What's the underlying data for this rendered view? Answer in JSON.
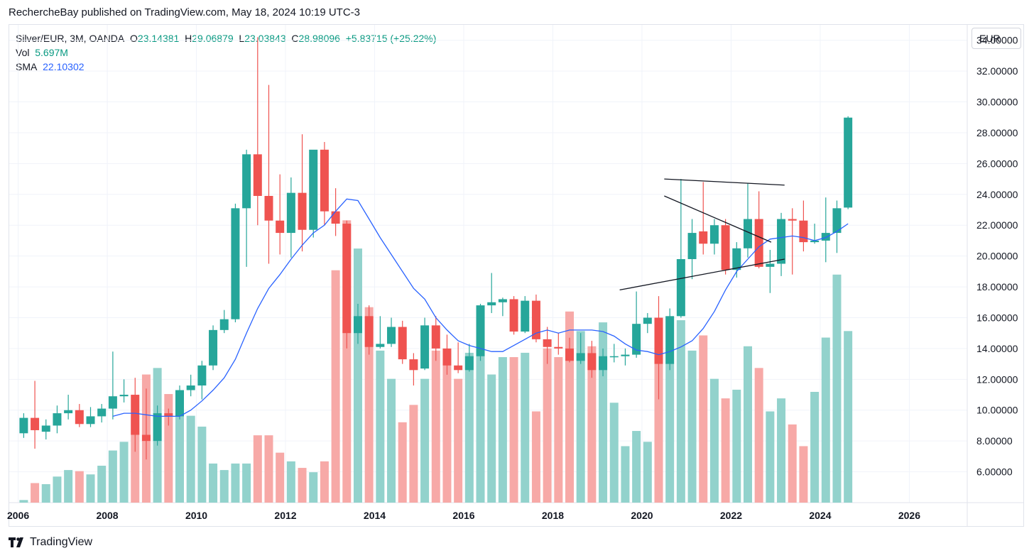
{
  "header": {
    "published": "RechercheBay published on TradingView.com, May 18, 2024 10:19 UTC-3"
  },
  "legend": {
    "symbol": "Silver/EUR, 3M, OANDA",
    "o_label": "O",
    "o_value": "23.14381",
    "h_label": "H",
    "h_value": "29.06879",
    "l_label": "L",
    "l_value": "23.03843",
    "c_label": "C",
    "c_value": "28.98096",
    "change": "+5.83715 (+25.22%)",
    "vol_label": "Vol",
    "vol_value": "5.697M",
    "sma_label": "SMA",
    "sma_value": "22.10302"
  },
  "currency_button": "EUR",
  "footer": {
    "brand": "TradingView",
    "logo_icon": "tradingview-logo-icon"
  },
  "colors": {
    "up": "#26a69a",
    "down": "#ef5350",
    "up_vol": "#92d2cc",
    "down_vol": "#f7a9a7",
    "sma": "#2962ff",
    "grid": "#f0f3fa",
    "trendline": "#131722"
  },
  "chart_data": {
    "type": "candlestick",
    "interval": "3M",
    "y_axis": {
      "side": "right",
      "range": [
        4.0,
        35.0
      ],
      "ticks": [
        6,
        8,
        10,
        12,
        14,
        16,
        18,
        20,
        22,
        24,
        26,
        28,
        30,
        32,
        34
      ],
      "tick_labels": [
        "6.00000",
        "8.00000",
        "10.00000",
        "12.00000",
        "14.00000",
        "16.00000",
        "18.00000",
        "20.00000",
        "22.00000",
        "24.00000",
        "26.00000",
        "28.00000",
        "30.00000",
        "32.00000",
        "34.00000"
      ]
    },
    "x_axis": {
      "range": [
        2005.8,
        2027.3
      ],
      "ticks": [
        2006,
        2008,
        2010,
        2012,
        2014,
        2016,
        2018,
        2020,
        2022,
        2024,
        2026
      ],
      "tick_labels": [
        "2006",
        "2008",
        "2010",
        "2012",
        "2014",
        "2016",
        "2018",
        "2020",
        "2022",
        "2024",
        "2026"
      ]
    },
    "grid": true,
    "start_date": "2006-Q1",
    "candles": [
      {
        "o": 8.5,
        "h": 9.8,
        "l": 8.2,
        "c": 9.5,
        "v": 0.12
      },
      {
        "o": 9.5,
        "h": 11.9,
        "l": 7.5,
        "c": 8.7,
        "v": 0.9
      },
      {
        "o": 8.6,
        "h": 9.4,
        "l": 8.1,
        "c": 9.0,
        "v": 0.85
      },
      {
        "o": 9.0,
        "h": 10.3,
        "l": 8.5,
        "c": 9.8,
        "v": 1.2
      },
      {
        "o": 9.8,
        "h": 11.0,
        "l": 9.4,
        "c": 10.0,
        "v": 1.5
      },
      {
        "o": 10.0,
        "h": 10.4,
        "l": 8.9,
        "c": 9.1,
        "v": 1.45
      },
      {
        "o": 9.1,
        "h": 10.2,
        "l": 8.9,
        "c": 9.6,
        "v": 1.3
      },
      {
        "o": 9.6,
        "h": 10.4,
        "l": 9.2,
        "c": 10.1,
        "v": 1.7
      },
      {
        "o": 10.1,
        "h": 13.8,
        "l": 9.4,
        "c": 10.9,
        "v": 2.4
      },
      {
        "o": 10.9,
        "h": 12.0,
        "l": 10.5,
        "c": 11.0,
        "v": 2.8
      },
      {
        "o": 11.0,
        "h": 12.1,
        "l": 7.3,
        "c": 8.4,
        "v": 4.0
      },
      {
        "o": 8.4,
        "h": 11.4,
        "l": 6.8,
        "c": 8.0,
        "v": 5.9
      },
      {
        "o": 8.0,
        "h": 10.3,
        "l": 7.7,
        "c": 9.8,
        "v": 6.2
      },
      {
        "o": 9.8,
        "h": 10.1,
        "l": 9.0,
        "c": 9.6,
        "v": 5.0
      },
      {
        "o": 9.6,
        "h": 11.6,
        "l": 9.4,
        "c": 11.3,
        "v": 4.2
      },
      {
        "o": 11.3,
        "h": 12.3,
        "l": 10.9,
        "c": 11.6,
        "v": 4.0
      },
      {
        "o": 11.6,
        "h": 13.2,
        "l": 10.7,
        "c": 12.9,
        "v": 3.5
      },
      {
        "o": 12.9,
        "h": 15.5,
        "l": 12.6,
        "c": 15.2,
        "v": 1.8
      },
      {
        "o": 15.2,
        "h": 16.5,
        "l": 15.0,
        "c": 15.9,
        "v": 1.5
      },
      {
        "o": 15.9,
        "h": 23.4,
        "l": 15.7,
        "c": 23.1,
        "v": 1.8
      },
      {
        "o": 23.1,
        "h": 26.9,
        "l": 19.3,
        "c": 26.6,
        "v": 1.8
      },
      {
        "o": 26.6,
        "h": 34.2,
        "l": 22.0,
        "c": 23.9,
        "v": 3.1
      },
      {
        "o": 23.9,
        "h": 31.1,
        "l": 19.5,
        "c": 22.3,
        "v": 3.1
      },
      {
        "o": 22.3,
        "h": 25.3,
        "l": 20.1,
        "c": 21.5,
        "v": 2.3
      },
      {
        "o": 21.5,
        "h": 25.1,
        "l": 19.9,
        "c": 24.1,
        "v": 1.9
      },
      {
        "o": 24.1,
        "h": 27.9,
        "l": 20.3,
        "c": 21.7,
        "v": 1.6
      },
      {
        "o": 21.7,
        "h": 26.6,
        "l": 21.2,
        "c": 26.9,
        "v": 1.4
      },
      {
        "o": 26.9,
        "h": 27.4,
        "l": 22.0,
        "c": 22.9,
        "v": 1.9
      },
      {
        "o": 22.9,
        "h": 24.4,
        "l": 21.3,
        "c": 22.1,
        "v": 10.7
      },
      {
        "o": 22.1,
        "h": 22.3,
        "l": 14.0,
        "c": 15.0,
        "v": 13.0
      },
      {
        "o": 15.0,
        "h": 16.9,
        "l": 14.3,
        "c": 16.1,
        "v": 11.7
      },
      {
        "o": 16.1,
        "h": 16.8,
        "l": 13.6,
        "c": 14.1,
        "v": 9.0
      },
      {
        "o": 14.1,
        "h": 16.1,
        "l": 14.0,
        "c": 14.3,
        "v": 7.0
      },
      {
        "o": 14.3,
        "h": 16.0,
        "l": 14.1,
        "c": 15.4,
        "v": 5.7
      },
      {
        "o": 15.4,
        "h": 15.8,
        "l": 13.0,
        "c": 13.3,
        "v": 3.7
      },
      {
        "o": 13.3,
        "h": 13.7,
        "l": 11.6,
        "c": 12.6,
        "v": 4.5
      },
      {
        "o": 12.7,
        "h": 16.0,
        "l": 12.6,
        "c": 15.5,
        "v": 5.7
      },
      {
        "o": 15.5,
        "h": 16.1,
        "l": 13.2,
        "c": 14.0,
        "v": 7.0
      },
      {
        "o": 14.0,
        "h": 14.9,
        "l": 12.3,
        "c": 12.9,
        "v": 6.4
      },
      {
        "o": 12.9,
        "h": 14.4,
        "l": 12.4,
        "c": 12.6,
        "v": 5.7
      },
      {
        "o": 12.6,
        "h": 14.3,
        "l": 12.5,
        "c": 13.5,
        "v": 6.9
      },
      {
        "o": 13.5,
        "h": 16.9,
        "l": 13.2,
        "c": 16.8,
        "v": 6.8
      },
      {
        "o": 16.8,
        "h": 18.9,
        "l": 16.3,
        "c": 17.0,
        "v": 5.9
      },
      {
        "o": 17.0,
        "h": 17.3,
        "l": 16.1,
        "c": 17.2,
        "v": 6.7
      },
      {
        "o": 17.2,
        "h": 17.4,
        "l": 14.9,
        "c": 15.1,
        "v": 6.7
      },
      {
        "o": 15.1,
        "h": 17.4,
        "l": 15.0,
        "c": 17.1,
        "v": 6.9
      },
      {
        "o": 17.1,
        "h": 17.5,
        "l": 14.4,
        "c": 14.6,
        "v": 4.2
      },
      {
        "o": 14.6,
        "h": 15.4,
        "l": 13.0,
        "c": 14.1,
        "v": 7.1
      },
      {
        "o": 14.1,
        "h": 15.0,
        "l": 13.6,
        "c": 14.0,
        "v": 6.7
      },
      {
        "o": 14.0,
        "h": 14.7,
        "l": 13.1,
        "c": 13.2,
        "v": 8.8
      },
      {
        "o": 13.2,
        "h": 15.0,
        "l": 13.0,
        "c": 13.7,
        "v": 7.9
      },
      {
        "o": 13.7,
        "h": 14.5,
        "l": 12.1,
        "c": 12.6,
        "v": 7.2
      },
      {
        "o": 12.6,
        "h": 14.0,
        "l": 12.2,
        "c": 13.5,
        "v": 8.3
      },
      {
        "o": 13.5,
        "h": 14.3,
        "l": 13.1,
        "c": 13.5,
        "v": 4.6
      },
      {
        "o": 13.5,
        "h": 14.0,
        "l": 12.9,
        "c": 13.6,
        "v": 2.6
      },
      {
        "o": 13.6,
        "h": 17.7,
        "l": 13.4,
        "c": 15.6,
        "v": 3.3
      },
      {
        "o": 15.6,
        "h": 16.3,
        "l": 15.0,
        "c": 16.0,
        "v": 2.8
      },
      {
        "o": 16.0,
        "h": 17.4,
        "l": 10.7,
        "c": 13.0,
        "v": 7.0
      },
      {
        "o": 13.0,
        "h": 16.6,
        "l": 12.6,
        "c": 16.1,
        "v": 6.4
      },
      {
        "o": 16.1,
        "h": 25.0,
        "l": 16.0,
        "c": 19.8,
        "v": 8.4
      },
      {
        "o": 19.8,
        "h": 22.4,
        "l": 18.5,
        "c": 21.5,
        "v": 7.0
      },
      {
        "o": 21.6,
        "h": 24.8,
        "l": 20.1,
        "c": 20.8,
        "v": 7.7
      },
      {
        "o": 20.8,
        "h": 22.4,
        "l": 20.1,
        "c": 22.0,
        "v": 5.7
      },
      {
        "o": 22.0,
        "h": 22.4,
        "l": 18.8,
        "c": 19.1,
        "v": 4.8
      },
      {
        "o": 19.1,
        "h": 20.9,
        "l": 18.6,
        "c": 20.5,
        "v": 5.2
      },
      {
        "o": 20.5,
        "h": 24.7,
        "l": 19.9,
        "c": 22.4,
        "v": 7.2
      },
      {
        "o": 22.4,
        "h": 24.2,
        "l": 19.2,
        "c": 19.3,
        "v": 6.2
      },
      {
        "o": 19.3,
        "h": 20.4,
        "l": 17.6,
        "c": 19.5,
        "v": 4.2
      },
      {
        "o": 19.5,
        "h": 22.8,
        "l": 18.7,
        "c": 22.4,
        "v": 4.8
      },
      {
        "o": 22.4,
        "h": 23.1,
        "l": 18.8,
        "c": 22.3,
        "v": 3.6
      },
      {
        "o": 22.3,
        "h": 23.6,
        "l": 20.3,
        "c": 20.9,
        "v": 2.6
      },
      {
        "o": 20.9,
        "h": 22.1,
        "l": 20.8,
        "c": 21.0,
        "v": 5.1
      },
      {
        "o": 21.0,
        "h": 23.8,
        "l": 19.6,
        "c": 21.5,
        "v": 7.6
      },
      {
        "o": 21.5,
        "h": 23.6,
        "l": 20.2,
        "c": 23.1,
        "v": 10.5
      },
      {
        "o": 23.14381,
        "h": 29.06879,
        "l": 23.03843,
        "c": 28.98096,
        "v": 7.9
      }
    ],
    "sma": [
      null,
      null,
      null,
      null,
      null,
      null,
      null,
      null,
      9.6,
      9.8,
      9.8,
      9.7,
      9.6,
      9.6,
      9.6,
      10.0,
      10.6,
      11.3,
      12.1,
      13.3,
      15.0,
      16.6,
      17.9,
      18.8,
      19.8,
      20.7,
      21.5,
      22.0,
      22.9,
      23.7,
      23.6,
      22.4,
      21.2,
      20.1,
      19.0,
      17.9,
      17.2,
      16.0,
      15.2,
      14.5,
      14.2,
      14.0,
      13.8,
      13.8,
      14.2,
      14.6,
      15.0,
      15.2,
      15.0,
      15.2,
      15.2,
      15.2,
      15.1,
      14.8,
      14.3,
      13.9,
      13.8,
      13.6,
      13.8,
      14.1,
      14.5,
      15.3,
      16.4,
      17.8,
      19.0,
      19.8,
      20.6,
      21.1,
      21.2,
      21.3,
      21.2,
      21.0,
      21.2,
      21.6,
      22.1
    ],
    "trendlines": [
      {
        "from": [
          2019.5,
          17.8
        ],
        "to": [
          2023.2,
          19.8
        ]
      },
      {
        "from": [
          2020.5,
          25.0
        ],
        "to": [
          2023.2,
          24.6
        ]
      },
      {
        "from": [
          2020.5,
          23.9
        ],
        "to": [
          2022.9,
          20.9
        ]
      }
    ],
    "volume_area": {
      "y_range": [
        0,
        22
      ]
    }
  }
}
